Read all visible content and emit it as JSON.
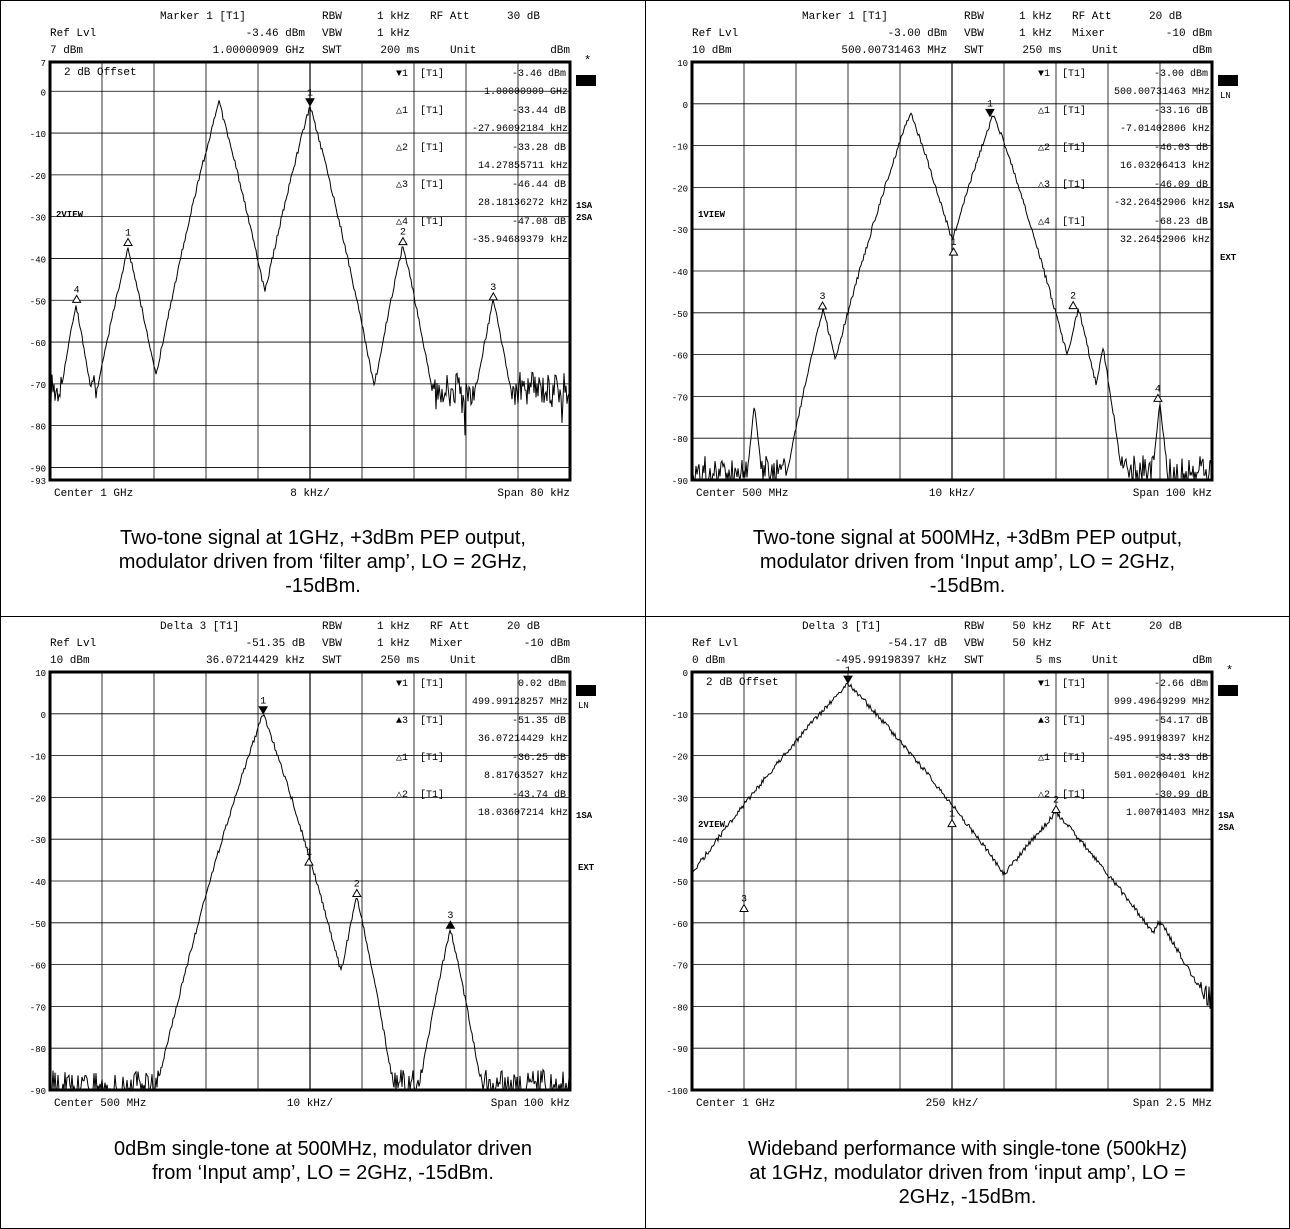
{
  "panels": [
    {
      "header": {
        "title": "Marker 1 [T1]",
        "reflvl_label": "Ref Lvl",
        "reflvl_val": "7 dBm",
        "mval1": "-3.46 dBm",
        "mval2": "1.00000909 GHz",
        "rbw_label": "RBW",
        "rbw": "1 kHz",
        "vbw_label": "VBW",
        "vbw": "1 kHz",
        "swt_label": "SWT",
        "swt": "200 ms",
        "p1_label": "RF Att",
        "p1_val": "30 dB",
        "p2_label": "",
        "p2_val": "",
        "unit_label": "Unit",
        "unit_val": "dBm"
      },
      "badge": "A",
      "badge2": "",
      "star": true,
      "side_labels": [
        "1SA",
        "2SA"
      ],
      "ext": "",
      "left_label": "2VIEW",
      "offset": "2 dB Offset",
      "footer": {
        "center": "Center 1 GHz",
        "div": "8 kHz/",
        "span": "Span 80 kHz"
      },
      "marker_table": [
        [
          "▼1",
          "[T1]",
          "-3.46 dBm",
          "1.00000909 GHz"
        ],
        [
          "△1",
          "[T1]",
          "-33.44 dB",
          "-27.96092184 kHz"
        ],
        [
          "△2",
          "[T1]",
          "-33.28 dB",
          "14.27855711 kHz"
        ],
        [
          "△3",
          "[T1]",
          "-46.44 dB",
          "28.18136272 kHz"
        ],
        [
          "△4",
          "[T1]",
          "-47.08 dB",
          "-35.94689379 kHz"
        ]
      ],
      "caption": [
        "Two-tone signal at 1GHz, +3dBm PEP output,",
        "modulator driven from ‘filter amp’, LO = 2GHz,",
        "-15dBm."
      ],
      "chart_data": {
        "type": "line",
        "ytick_labels": [
          "7",
          "0",
          "-10",
          "-20",
          "-30",
          "-40",
          "-50",
          "-60",
          "-70",
          "-80",
          "-90",
          "-93"
        ],
        "ylim": [
          -93,
          7
        ],
        "xlim": [
          -40,
          40
        ],
        "x_unit": "kHz offset",
        "peaks": [
          {
            "x": -36,
            "y": -51,
            "w": 1.1
          },
          {
            "x": -28,
            "y": -37.5,
            "w": 1.4
          },
          {
            "x": -20,
            "y": -49,
            "w": 1.2
          },
          {
            "x": -14,
            "y": -2.6,
            "w": 1.6
          },
          {
            "x": -8,
            "y": -41,
            "w": 0.7
          },
          {
            "x": 0,
            "y": -3.46,
            "w": 1.6
          },
          {
            "x": 14.3,
            "y": -36.7,
            "w": 1.3
          },
          {
            "x": 28.2,
            "y": -49.9,
            "w": 1.2
          },
          {
            "x": -47,
            "y": -51,
            "w": 1
          }
        ],
        "noise": -71,
        "markers": [
          {
            "label": "1",
            "x": 0,
            "y": -3.46,
            "sym": "▼"
          },
          {
            "label": "1",
            "x": -28,
            "y": -36.9,
            "sym": "△"
          },
          {
            "label": "2",
            "x": 14.3,
            "y": -36.7,
            "sym": "△"
          },
          {
            "label": "3",
            "x": 28.2,
            "y": -49.9,
            "sym": "△"
          },
          {
            "label": "4",
            "x": -35.9,
            "y": -50.5,
            "sym": "△"
          }
        ]
      }
    },
    {
      "header": {
        "title": "Marker 1 [T1]",
        "reflvl_label": "Ref Lvl",
        "reflvl_val": "10 dBm",
        "mval1": "-3.00 dBm",
        "mval2": "500.00731463 MHz",
        "rbw_label": "RBW",
        "rbw": "1 kHz",
        "vbw_label": "VBW",
        "vbw": "1 kHz",
        "swt_label": "SWT",
        "swt": "250 ms",
        "p1_label": "RF Att",
        "p1_val": "20 dB",
        "p2_label": "Mixer",
        "p2_val": "-10 dBm",
        "unit_label": "Unit",
        "unit_val": "dBm"
      },
      "badge": "B",
      "badge2": "LN",
      "star": false,
      "side_labels": [
        "1SA"
      ],
      "ext": "EXT",
      "left_label": "1VIEW",
      "offset": "",
      "footer": {
        "center": "Center 500 MHz",
        "div": "10 kHz/",
        "span": "Span 100 kHz"
      },
      "marker_table": [
        [
          "▼1",
          "[T1]",
          "-3.00 dBm",
          "500.00731463 MHz"
        ],
        [
          "△1",
          "[T1]",
          "-33.16 dB",
          "-7.01402806 kHz"
        ],
        [
          "△2",
          "[T1]",
          "-46.03 dB",
          "16.03206413 kHz"
        ],
        [
          "△3",
          "[T1]",
          "-46.09 dB",
          "-32.26452906 kHz"
        ],
        [
          "△4",
          "[T1]",
          "-68.23 dB",
          "32.26452906 kHz"
        ]
      ],
      "caption": [
        "Two-tone signal at 500MHz, +3dBm PEP output,",
        "modulator driven from ‘Input amp’, LO = 2GHz,",
        "-15dBm."
      ],
      "chart_data": {
        "type": "line",
        "ytick_labels": [
          "10",
          "0",
          "-10",
          "-20",
          "-30",
          "-40",
          "-50",
          "-60",
          "-70",
          "-80",
          "-90"
        ],
        "ylim": [
          -90,
          10
        ],
        "xlim": [
          -50,
          50
        ],
        "x_unit": "kHz offset",
        "peaks": [
          {
            "x": -24.8,
            "y": -49,
            "w": 1.8
          },
          {
            "x": -8,
            "y": -1.9,
            "w": 2.6
          },
          {
            "x": 8,
            "y": -2.3,
            "w": 2.6
          },
          {
            "x": 0.3,
            "y": -36,
            "w": 1.2
          },
          {
            "x": 24.3,
            "y": -49,
            "w": 1.8
          },
          {
            "x": -20,
            "y": -58,
            "w": 1.2
          },
          {
            "x": 29,
            "y": -58,
            "w": 1.2
          },
          {
            "x": 40,
            "y": -71.5,
            "w": 0.8
          },
          {
            "x": -38,
            "y": -72,
            "w": 0.8
          }
        ],
        "noise": -88,
        "markers": [
          {
            "label": "1",
            "x": 7.3,
            "y": -3,
            "sym": "▼"
          },
          {
            "label": "1",
            "x": 0.3,
            "y": -36.2,
            "sym": "△"
          },
          {
            "label": "2",
            "x": 23.3,
            "y": -49.0,
            "sym": "△"
          },
          {
            "label": "3",
            "x": -24.9,
            "y": -49.1,
            "sym": "△"
          },
          {
            "label": "4",
            "x": 39.6,
            "y": -71.2,
            "sym": "△"
          }
        ]
      }
    },
    {
      "header": {
        "title": "Delta 3 [T1]",
        "reflvl_label": "Ref Lvl",
        "reflvl_val": "10 dBm",
        "mval1": "-51.35 dB",
        "mval2": "36.07214429 kHz",
        "rbw_label": "RBW",
        "rbw": "1 kHz",
        "vbw_label": "VBW",
        "vbw": "1 kHz",
        "swt_label": "SWT",
        "swt": "250 ms",
        "p1_label": "RF Att",
        "p1_val": "20 dB",
        "p2_label": "Mixer",
        "p2_val": "-10 dBm",
        "unit_label": "Unit",
        "unit_val": "dBm"
      },
      "badge": "B",
      "badge2": "LN",
      "star": false,
      "side_labels": [
        "1SA"
      ],
      "ext": "EXT",
      "left_label": "",
      "offset": "",
      "footer": {
        "center": "Center 500 MHz",
        "div": "10 kHz/",
        "span": "Span 100 kHz"
      },
      "marker_table": [
        [
          "▼1",
          "[T1]",
          "0.02 dBm",
          "499.99128257 MHz"
        ],
        [
          "▲3",
          "[T1]",
          "-51.35 dB",
          "36.07214429 kHz"
        ],
        [
          "△1",
          "[T1]",
          "-36.25 dB",
          "8.81763527 kHz"
        ],
        [
          "△2",
          "[T1]",
          "-43.74 dB",
          "18.03607214 kHz"
        ]
      ],
      "caption": [
        "0dBm single-tone at 500MHz, modulator driven",
        "from ‘Input amp’, LO = 2GHz, -15dBm."
      ],
      "chart_data": {
        "type": "line",
        "ytick_labels": [
          "10",
          "0",
          "-10",
          "-20",
          "-30",
          "-40",
          "-50",
          "-60",
          "-70",
          "-80",
          "-90"
        ],
        "ylim": [
          -90,
          10
        ],
        "xlim": [
          -50,
          50
        ],
        "x_unit": "kHz offset",
        "peaks": [
          {
            "x": -9,
            "y": 0.02,
            "w": 2.6
          },
          {
            "x": 0,
            "y": -36.2,
            "w": 1.6
          },
          {
            "x": 9,
            "y": -43.7,
            "w": 1.6
          },
          {
            "x": 27,
            "y": -51.3,
            "w": 1.6
          }
        ],
        "noise": -89,
        "markers": [
          {
            "label": "1",
            "x": -9,
            "y": 0.02,
            "sym": "▼"
          },
          {
            "label": "1",
            "x": -0.2,
            "y": -36.2,
            "sym": "△"
          },
          {
            "label": "2",
            "x": 9,
            "y": -43.7,
            "sym": "△"
          },
          {
            "label": "3",
            "x": 27,
            "y": -51.3,
            "sym": "▲"
          }
        ]
      }
    },
    {
      "header": {
        "title": "Delta 3 [T1]",
        "reflvl_label": "Ref Lvl",
        "reflvl_val": "0 dBm",
        "mval1": "-54.17 dB",
        "mval2": "-495.99198397 kHz",
        "rbw_label": "RBW",
        "rbw": "50 kHz",
        "vbw_label": "VBW",
        "vbw": "50 kHz",
        "swt_label": "SWT",
        "swt": "5 ms",
        "p1_label": "RF Att",
        "p1_val": "20 dB",
        "p2_label": "",
        "p2_val": "",
        "unit_label": "Unit",
        "unit_val": "dBm"
      },
      "badge": "A",
      "badge2": "",
      "star": true,
      "side_labels": [
        "1SA",
        "2SA"
      ],
      "ext": "",
      "left_label": "2VIEW",
      "offset": "2 dB Offset",
      "footer": {
        "center": "Center 1 GHz",
        "div": "250 kHz/",
        "span": "Span 2.5 MHz"
      },
      "marker_table": [
        [
          "▼1",
          "[T1]",
          "-2.66 dBm",
          "999.49649299 MHz"
        ],
        [
          "▲3",
          "[T1]",
          "-54.17 dB",
          "-495.99198397 kHz"
        ],
        [
          "△1",
          "[T1]",
          "-34.33 dB",
          "501.00200401 kHz"
        ],
        [
          "△2",
          "[T1]",
          "-30.99 dB",
          "1.00701403 MHz"
        ]
      ],
      "caption": [
        "Wideband performance with single-tone (500kHz)",
        "at 1GHz, modulator driven from ‘input amp’, LO =",
        "2GHz, -15dBm."
      ],
      "chart_data": {
        "type": "line",
        "ytick_labels": [
          "0",
          "-10",
          "-20",
          "-30",
          "-40",
          "-50",
          "-60",
          "-70",
          "-80",
          "-90",
          "-100"
        ],
        "ylim": [
          -100,
          0
        ],
        "xlim": [
          -1250,
          1250
        ],
        "x_unit": "kHz offset",
        "peaks": [
          {
            "x": -1000,
            "y": -57.3,
            "w": 110
          },
          {
            "x": -500,
            "y": -2.66,
            "w": 170
          },
          {
            "x": 0,
            "y": -37.0,
            "w": 160
          },
          {
            "x": 500,
            "y": -33.6,
            "w": 160
          },
          {
            "x": 1000,
            "y": -59.5,
            "w": 110
          }
        ],
        "noise": -78,
        "markers": [
          {
            "label": "1",
            "x": -500,
            "y": -2.66,
            "sym": "▼"
          },
          {
            "label": "1",
            "x": 0,
            "y": -37.0,
            "sym": "△"
          },
          {
            "label": "2",
            "x": 500,
            "y": -33.6,
            "sym": "△"
          },
          {
            "label": "3",
            "x": -1000,
            "y": -57.3,
            "sym": "△"
          }
        ]
      }
    }
  ]
}
